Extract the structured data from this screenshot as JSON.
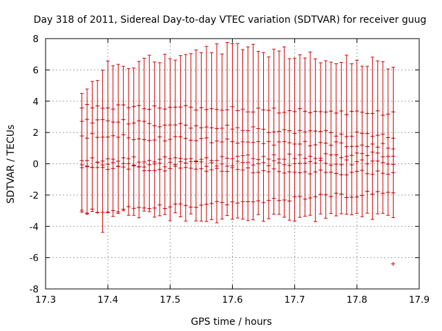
{
  "chart_data": {
    "type": "errorbar",
    "title": "Day 318 of 2011, Sidereal Day-to-day VTEC variation (SDTVAR) for receiver guug",
    "xlabel": "GPS time / hours",
    "ylabel": "SDTVAR / TECUs",
    "xlim": [
      17.3,
      17.9
    ],
    "ylim": [
      -8,
      8
    ],
    "xticks": [
      "17.3",
      "17.4",
      "17.5",
      "17.6",
      "17.7",
      "17.8",
      "17.9"
    ],
    "yticks": [
      "-8",
      "-6",
      "-4",
      "-2",
      "0",
      "2",
      "4",
      "6",
      "8"
    ],
    "grid": true,
    "colors": {
      "series": "#cc0000",
      "grid": "#a0a0a0",
      "axis": "#000000"
    },
    "time_range": [
      17.3583,
      17.8583
    ],
    "bands": [
      {
        "start": 3.7,
        "end": 3.25
      },
      {
        "start": 2.8,
        "end": 1.75
      },
      {
        "start": 1.8,
        "end": 1.1
      },
      {
        "start": 0.2,
        "end": 0.6
      },
      {
        "start": -0.1,
        "end": 0.1
      },
      {
        "start": -0.2,
        "end": -0.6
      },
      {
        "start": -3.1,
        "end": -1.8
      }
    ],
    "error_envelope": {
      "upper": [
        6.0,
        7.5,
        6.3
      ],
      "lower": [
        -3.0,
        -3.6,
        -3.2
      ],
      "peak_x": 17.6
    },
    "outliers": [
      {
        "x": 17.858,
        "y": -6.4
      }
    ]
  }
}
